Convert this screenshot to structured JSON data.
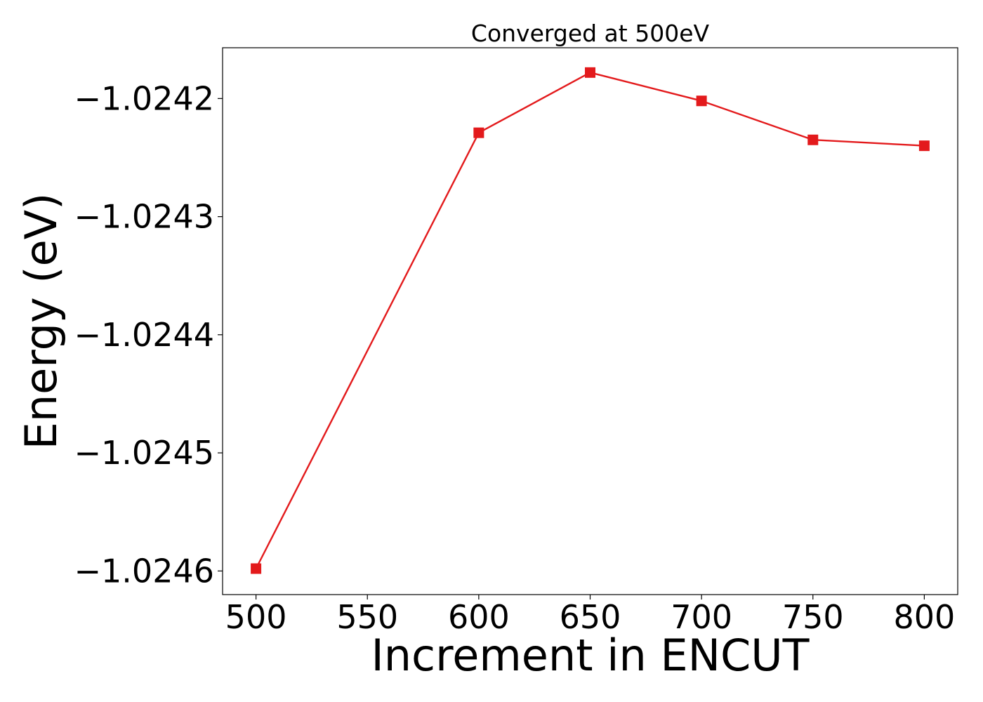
{
  "chart_data": {
    "type": "line",
    "title": "Converged at 500eV",
    "xlabel": "Increment in ENCUT",
    "ylabel": "Energy (eV)",
    "x": [
      500,
      600,
      650,
      700,
      750,
      800
    ],
    "series": [
      {
        "values": [
          -1.024598,
          -1.024229,
          -1.024178,
          -1.024202,
          -1.024235,
          -1.02424
        ],
        "color": "#e31a1c",
        "marker": "square"
      }
    ],
    "xlim": [
      485,
      815
    ],
    "ylim": [
      -1.02462,
      -1.024157
    ],
    "xticks": [
      500,
      550,
      600,
      650,
      700,
      750,
      800
    ],
    "xtick_labels": [
      "500",
      "550",
      "600",
      "650",
      "700",
      "750",
      "800"
    ],
    "yticks": [
      -1.0246,
      -1.0245,
      -1.0244,
      -1.0243,
      -1.0242
    ],
    "ytick_labels": [
      "−1.0246",
      "−1.0245",
      "−1.0244",
      "−1.0243",
      "−1.0242"
    ],
    "grid": false,
    "legend": "none"
  }
}
